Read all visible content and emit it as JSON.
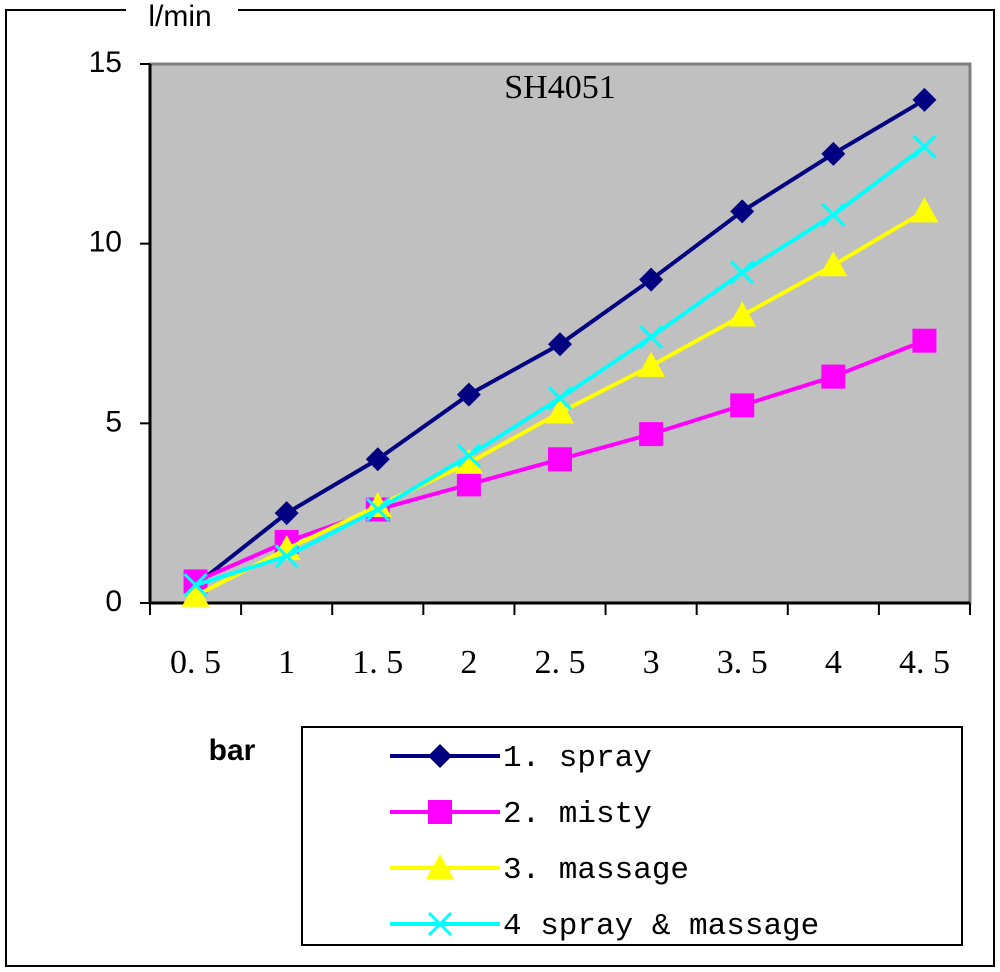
{
  "chart_data": {
    "type": "line",
    "title": "SH4051",
    "y_label": "l/min",
    "x_label": "bar",
    "categories": [
      "0. 5",
      "1",
      "1. 5",
      "2",
      "2. 5",
      "3",
      "3. 5",
      "4",
      "4. 5"
    ],
    "ylim": [
      0,
      15
    ],
    "yticks": [
      0,
      5,
      10,
      15
    ],
    "plot_background": "#c0c0c0",
    "series": [
      {
        "name": "1. spray",
        "color": "#000080",
        "marker": "diamond",
        "values": [
          0.5,
          2.5,
          4.0,
          5.8,
          7.2,
          9.0,
          10.9,
          12.5,
          14.0
        ]
      },
      {
        "name": "2. misty",
        "color": "#ff00ff",
        "marker": "square",
        "values": [
          0.6,
          1.7,
          2.6,
          3.3,
          4.0,
          4.7,
          5.5,
          6.3,
          7.3
        ]
      },
      {
        "name": "3. massage",
        "color": "#ffff00",
        "marker": "triangle",
        "values": [
          0.2,
          1.5,
          2.7,
          3.9,
          5.3,
          6.6,
          8.0,
          9.4,
          10.9
        ]
      },
      {
        "name": "4 spray & massage",
        "color": "#00ffff",
        "marker": "x",
        "values": [
          0.5,
          1.3,
          2.6,
          4.1,
          5.7,
          7.4,
          9.2,
          10.8,
          12.7
        ]
      }
    ]
  }
}
